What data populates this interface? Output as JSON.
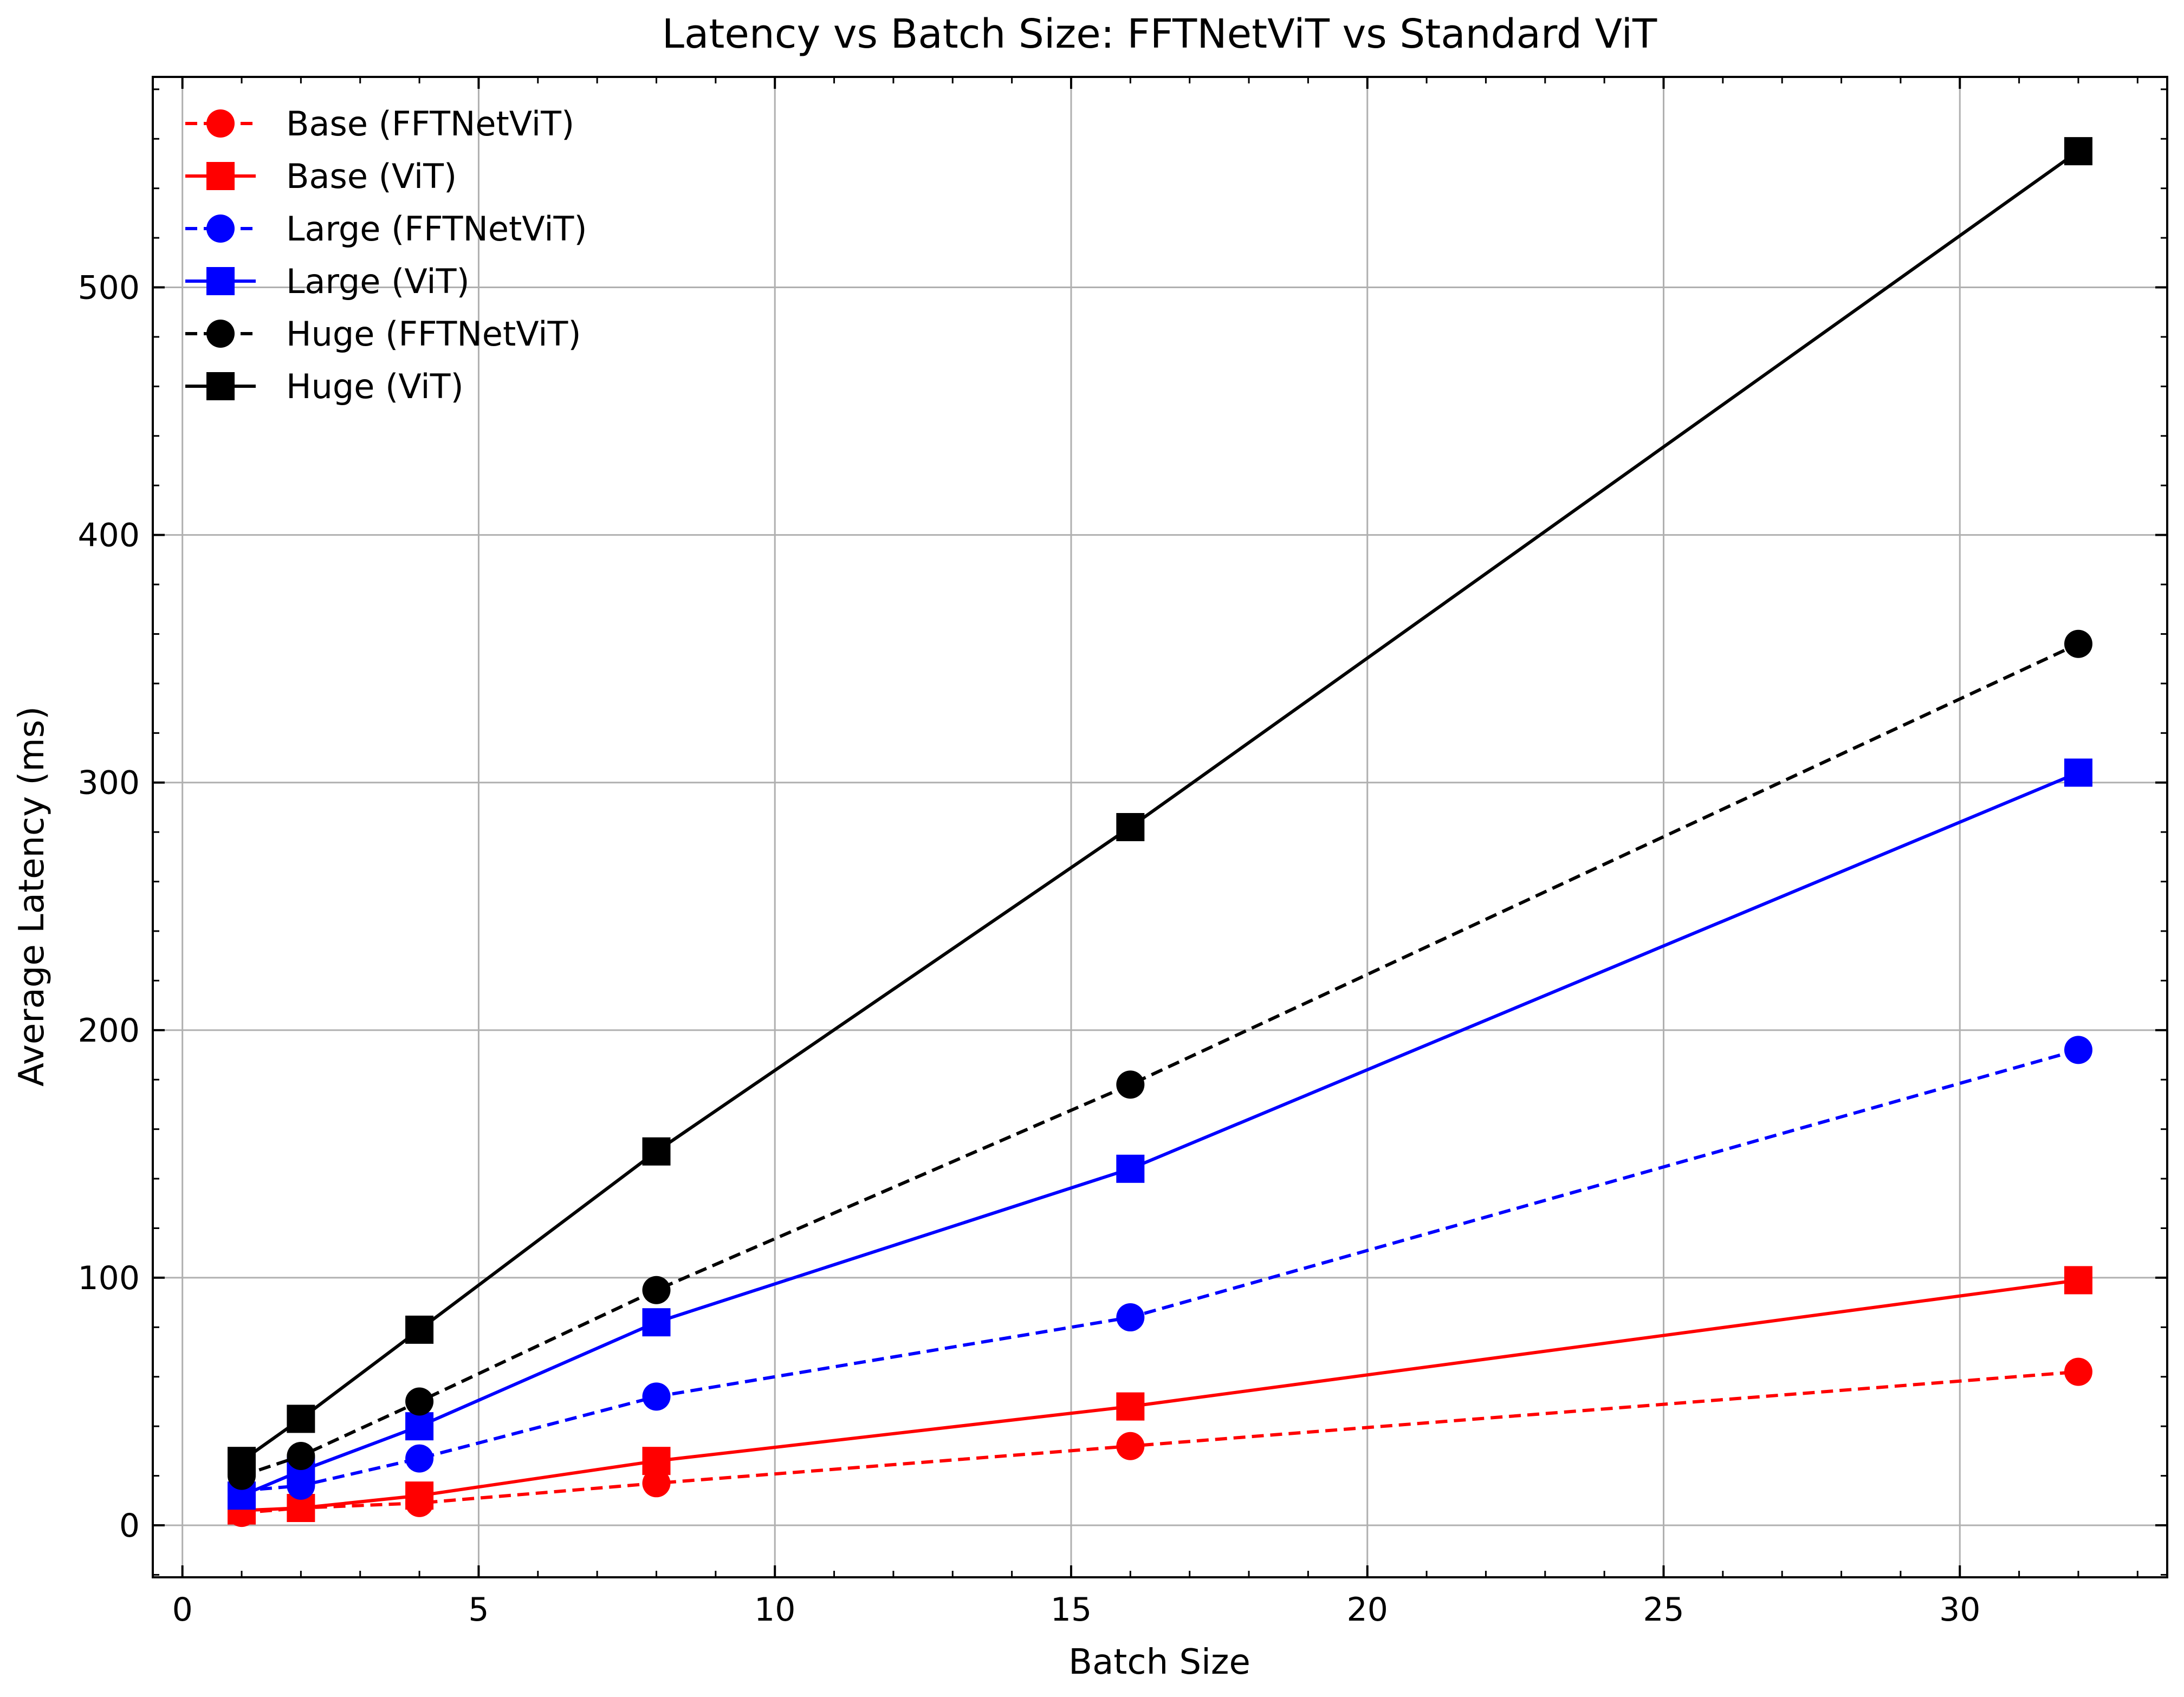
{
  "chart_data": {
    "type": "line",
    "title": "Latency vs Batch Size: FFTNetViT vs Standard ViT",
    "xlabel": "Batch Size",
    "ylabel": "Average Latency (ms)",
    "xlim": [
      -0.5,
      33.5
    ],
    "ylim": [
      -21,
      585
    ],
    "xticks": [
      0,
      5,
      10,
      15,
      20,
      25,
      30
    ],
    "yticks": [
      0,
      100,
      200,
      300,
      400,
      500
    ],
    "xtick_labels": [
      "0",
      "5",
      "10",
      "15",
      "20",
      "25",
      "30"
    ],
    "ytick_labels": [
      "0",
      "100",
      "200",
      "300",
      "400",
      "500"
    ],
    "grid": true,
    "legend_position": "top-left",
    "x": [
      1,
      2,
      4,
      8,
      16,
      32
    ],
    "series": [
      {
        "name": "Base (FFTNetViT)",
        "color": "#ff0000",
        "dash": true,
        "marker": "circle",
        "values": [
          5,
          7,
          9,
          17,
          32,
          62
        ]
      },
      {
        "name": "Base (ViT)",
        "color": "#ff0000",
        "dash": false,
        "marker": "square",
        "values": [
          6,
          7,
          12,
          26,
          48,
          99
        ]
      },
      {
        "name": "Large (FFTNetViT)",
        "color": "#0000ff",
        "dash": true,
        "marker": "circle",
        "values": [
          14,
          16,
          27,
          52,
          84,
          192
        ]
      },
      {
        "name": "Large (ViT)",
        "color": "#0000ff",
        "dash": false,
        "marker": "square",
        "values": [
          12,
          22,
          40,
          82,
          144,
          304
        ]
      },
      {
        "name": "Huge (FFTNetViT)",
        "color": "#000000",
        "dash": true,
        "marker": "circle",
        "values": [
          20,
          28,
          50,
          95,
          178,
          356
        ]
      },
      {
        "name": "Huge (ViT)",
        "color": "#000000",
        "dash": false,
        "marker": "square",
        "values": [
          26,
          43,
          79,
          151,
          282,
          555
        ]
      }
    ]
  }
}
